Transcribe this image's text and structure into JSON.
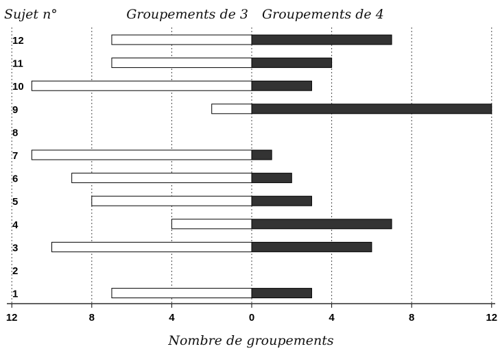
{
  "chart_data": {
    "type": "bar",
    "orientation": "horizontal-diverging",
    "row_header": "Sujet n°",
    "xlabel": "Nombre de groupements",
    "categories": [
      "12",
      "11",
      "10",
      "9",
      "8",
      "7",
      "6",
      "5",
      "4",
      "3",
      "2",
      "1"
    ],
    "x_ticks": [
      {
        "value": -12,
        "label": "12"
      },
      {
        "value": -8,
        "label": "8"
      },
      {
        "value": -4,
        "label": "4"
      },
      {
        "value": 0,
        "label": "0"
      },
      {
        "value": 4,
        "label": "4"
      },
      {
        "value": 8,
        "label": "8"
      },
      {
        "value": 12,
        "label": "12"
      }
    ],
    "xlim": [
      -12,
      12
    ],
    "grid": "vertical dotted",
    "series": [
      {
        "name": "Groupements de 3",
        "side": "left",
        "color": "#ffffff",
        "values": [
          7,
          7,
          11,
          2,
          0,
          11,
          9,
          8,
          4,
          10,
          0,
          7
        ]
      },
      {
        "name": "Groupements de 4",
        "side": "right",
        "color": "#333333",
        "values": [
          7,
          4,
          3,
          12,
          0,
          1,
          2,
          3,
          7,
          6,
          0,
          3
        ]
      }
    ]
  }
}
